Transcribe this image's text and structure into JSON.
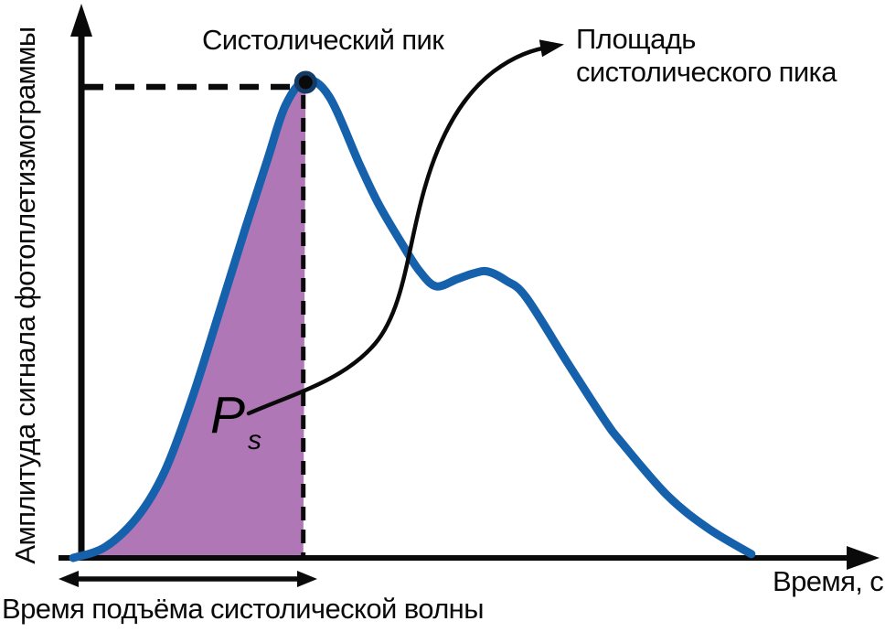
{
  "figure": {
    "background": "#ffffff"
  },
  "colors": {
    "curve": "#1561ac",
    "area_fill": "#b077b7",
    "ink": "#0a0a0a",
    "marker_ring": "#143a66"
  },
  "chart_data": {
    "type": "line",
    "title": "",
    "xlabel": "Время, с",
    "ylabel": "Амплитуда сигнала фотоплетизмограммы",
    "x_axis": {
      "range_norm": [
        0,
        1
      ],
      "ticks": [],
      "unit": "с"
    },
    "y_axis": {
      "range_norm": [
        0,
        1
      ],
      "ticks": [],
      "tick_at_peak_amplitude": true
    },
    "grid": false,
    "legend": "none",
    "series": [
      {
        "name": "сигнал фотоплетизмограммы",
        "x": [
          0.0,
          0.04,
          0.08,
          0.114,
          0.148,
          0.182,
          0.214,
          0.242,
          0.264,
          0.289,
          0.318,
          0.356,
          0.38,
          0.409,
          0.43,
          0.451,
          0.477,
          0.498,
          0.515,
          0.538,
          0.563,
          0.614,
          0.66,
          0.682,
          0.739,
          0.79,
          0.843
        ],
        "y": [
          0.0,
          0.023,
          0.086,
          0.182,
          0.335,
          0.517,
          0.69,
          0.837,
          0.948,
          1.0,
          0.967,
          0.824,
          0.74,
          0.657,
          0.602,
          0.569,
          0.584,
          0.596,
          0.6,
          0.581,
          0.546,
          0.41,
          0.29,
          0.241,
          0.13,
          0.061,
          0.008
        ]
      }
    ],
    "annotations": {
      "systolic_peak": {
        "label": "Систолический пик",
        "x": 0.289,
        "y": 1.0,
        "marker": "filled-circle",
        "guides": "dashed-lines-to-both-axes"
      },
      "systolic_peak_area": {
        "label_line1": "Площадь",
        "label_line2": "систолического пика",
        "symbol_main": "P",
        "symbol_sub": "s",
        "region_x": [
          0.0,
          0.286
        ]
      },
      "rise_time": {
        "label": "Время подъёма систолической волны",
        "span_x": [
          0.0,
          0.3
        ]
      }
    }
  }
}
